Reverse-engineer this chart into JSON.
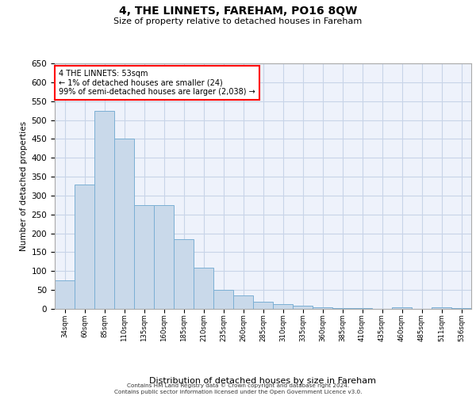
{
  "title": "4, THE LINNETS, FAREHAM, PO16 8QW",
  "subtitle": "Size of property relative to detached houses in Fareham",
  "xlabel": "Distribution of detached houses by size in Fareham",
  "ylabel": "Number of detached properties",
  "categories": [
    "34sqm",
    "60sqm",
    "85sqm",
    "110sqm",
    "135sqm",
    "160sqm",
    "185sqm",
    "210sqm",
    "235sqm",
    "260sqm",
    "285sqm",
    "310sqm",
    "335sqm",
    "360sqm",
    "385sqm",
    "410sqm",
    "435sqm",
    "460sqm",
    "485sqm",
    "511sqm",
    "536sqm"
  ],
  "values": [
    75,
    330,
    525,
    450,
    275,
    275,
    185,
    110,
    50,
    35,
    18,
    12,
    8,
    5,
    3,
    3,
    0,
    5,
    0,
    5,
    3
  ],
  "bar_color": "#c9d9ea",
  "bar_edge_color": "#7bafd4",
  "annotation_text": "4 THE LINNETS: 53sqm\n← 1% of detached houses are smaller (24)\n99% of semi-detached houses are larger (2,038) →",
  "annotation_box_color": "white",
  "annotation_box_edge_color": "red",
  "ylim": [
    0,
    650
  ],
  "bg_color": "#eef2fb",
  "grid_color": "#c8d4e8",
  "footer_line1": "Contains HM Land Registry data © Crown copyright and database right 2024.",
  "footer_line2": "Contains public sector information licensed under the Open Government Licence v3.0."
}
